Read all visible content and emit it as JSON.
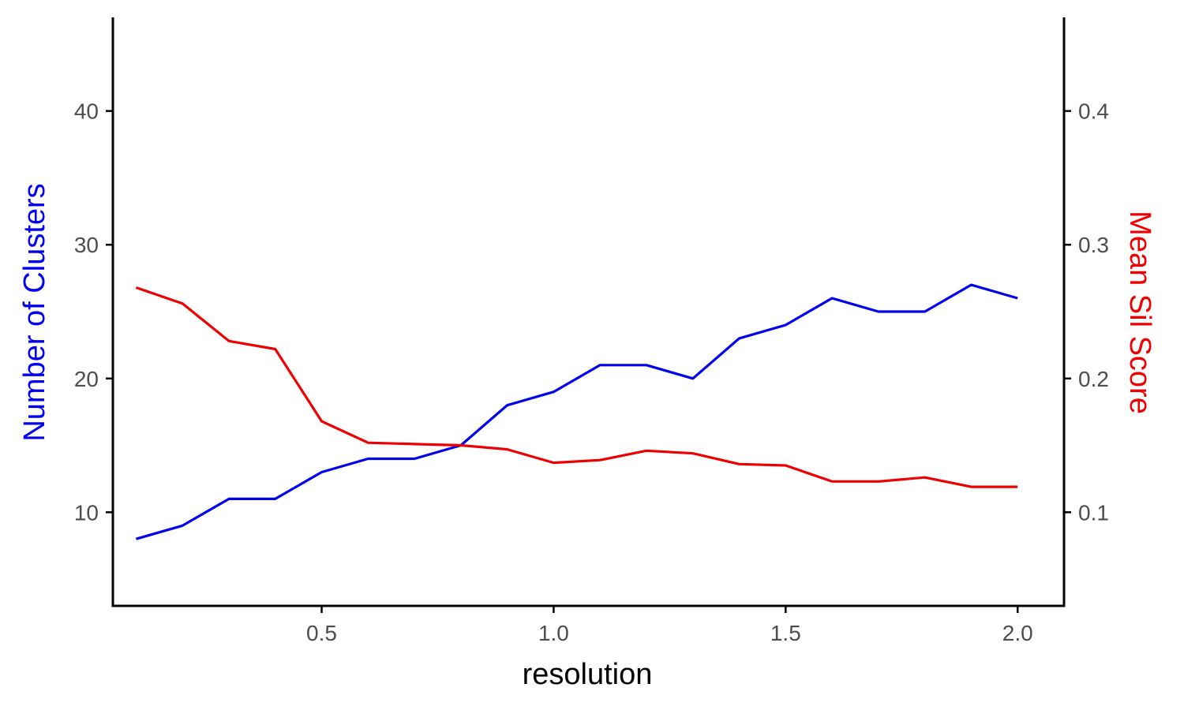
{
  "chart_data": {
    "type": "line",
    "xlabel": "resolution",
    "ylabel_left": "Number of Clusters",
    "ylabel_right": "Mean Sil Score",
    "xlim": [
      0.05,
      2.1
    ],
    "ylim_left": [
      3,
      47
    ],
    "ylim_right": [
      0.03,
      0.47
    ],
    "x_ticks": [
      "0.5",
      "1.0",
      "1.5",
      "2.0"
    ],
    "y_ticks_left": [
      "10",
      "20",
      "30",
      "40"
    ],
    "y_ticks_right": [
      "0.1",
      "0.2",
      "0.3",
      "0.4"
    ],
    "colors": {
      "clusters": "#0000ee",
      "sil": "#ee0000",
      "axis": "#000000",
      "tick_text": "#4d4d4d"
    },
    "x": [
      0.1,
      0.2,
      0.3,
      0.4,
      0.5,
      0.6,
      0.7,
      0.8,
      0.9,
      1.0,
      1.1,
      1.2,
      1.3,
      1.4,
      1.5,
      1.6,
      1.7,
      1.8,
      1.9,
      2.0
    ],
    "series": [
      {
        "axis": "left",
        "color": "#0000ee",
        "values": [
          8,
          9,
          11,
          11,
          13,
          14,
          14,
          15,
          18,
          19,
          21,
          21,
          20,
          23,
          24,
          26,
          25,
          25,
          27,
          26
        ]
      },
      {
        "axis": "right",
        "color": "#ee0000",
        "values": [
          0.268,
          0.256,
          0.228,
          0.222,
          0.168,
          0.152,
          0.151,
          0.15,
          0.147,
          0.137,
          0.139,
          0.146,
          0.144,
          0.136,
          0.135,
          0.123,
          0.123,
          0.126,
          0.119,
          0.119
        ]
      }
    ],
    "grid": false,
    "legend": "none"
  }
}
